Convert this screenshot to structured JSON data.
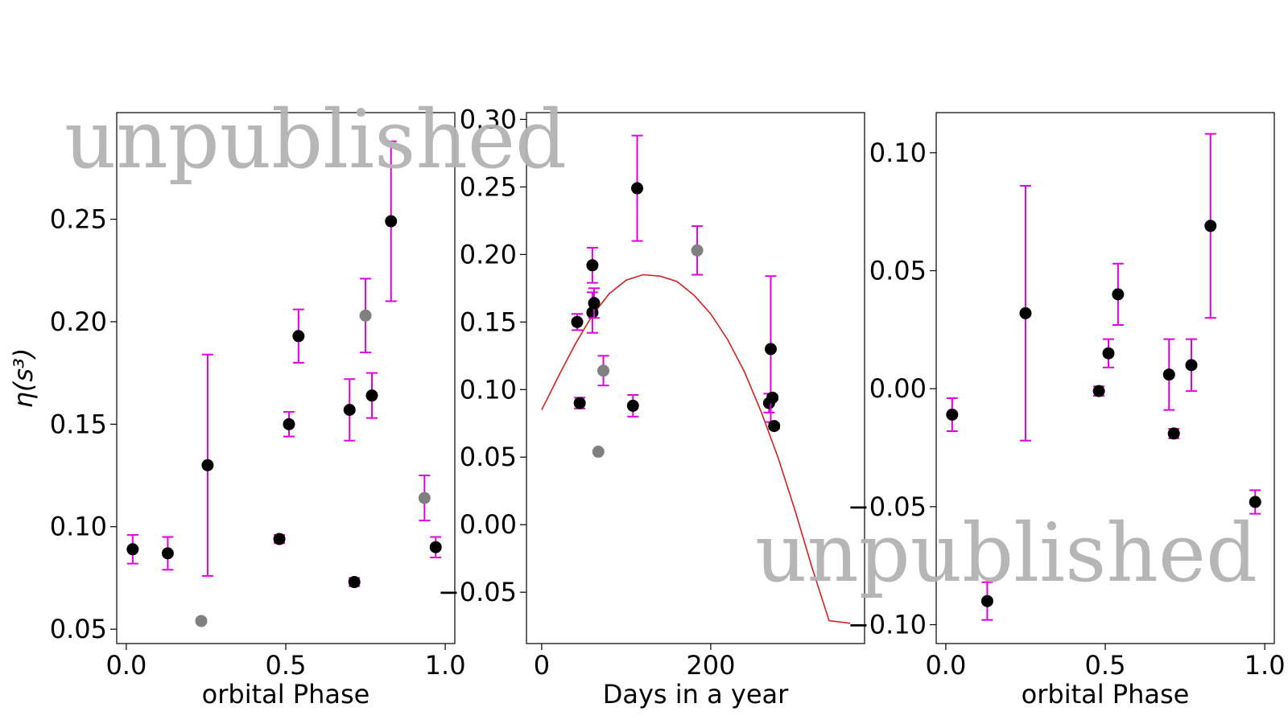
{
  "colors": {
    "black_points": "#000000",
    "excluded_points": "#808080",
    "errorbars": "#e000e0",
    "fit_curve": "#d42020",
    "watermark": "#b3b3b3"
  },
  "watermark_text": "unpublished",
  "chart_data": [
    {
      "type": "scatter",
      "xlabel": "orbital Phase",
      "ylabel": "η(s³)",
      "xlim": [
        -0.03,
        1.03
      ],
      "ylim": [
        0.043,
        0.302
      ],
      "xticks": [
        0.0,
        0.5,
        1.0
      ],
      "xtick_labels": [
        "0.0",
        "0.5",
        "1.0"
      ],
      "yticks": [
        0.05,
        0.1,
        0.15,
        0.2,
        0.25
      ],
      "ytick_labels": [
        "0.05",
        "0.10",
        "0.15",
        "0.20",
        "0.25"
      ],
      "grid": false,
      "points": [
        {
          "x": 0.02,
          "y": 0.089,
          "err": 0.007,
          "excluded": false
        },
        {
          "x": 0.13,
          "y": 0.087,
          "err": 0.008,
          "excluded": false
        },
        {
          "x": 0.235,
          "y": 0.054,
          "err": 0,
          "excluded": true
        },
        {
          "x": 0.255,
          "y": 0.13,
          "err": 0.054,
          "excluded": false
        },
        {
          "x": 0.48,
          "y": 0.094,
          "err": 0.002,
          "excluded": false
        },
        {
          "x": 0.51,
          "y": 0.15,
          "err": 0.006,
          "excluded": false
        },
        {
          "x": 0.54,
          "y": 0.193,
          "err": 0.013,
          "excluded": false
        },
        {
          "x": 0.7,
          "y": 0.157,
          "err": 0.015,
          "excluded": false
        },
        {
          "x": 0.715,
          "y": 0.073,
          "err": 0.002,
          "excluded": false
        },
        {
          "x": 0.75,
          "y": 0.203,
          "err": 0.018,
          "excluded": true
        },
        {
          "x": 0.77,
          "y": 0.164,
          "err": 0.011,
          "excluded": false
        },
        {
          "x": 0.83,
          "y": 0.249,
          "err": 0.039,
          "excluded": false
        },
        {
          "x": 0.935,
          "y": 0.114,
          "err": 0.011,
          "excluded": true
        },
        {
          "x": 0.97,
          "y": 0.09,
          "err": 0.005,
          "excluded": false
        }
      ]
    },
    {
      "type": "scatter",
      "xlabel": "Days in a year",
      "ylabel": "",
      "xlim": [
        -18,
        382
      ],
      "ylim": [
        -0.088,
        0.305
      ],
      "xticks": [
        0,
        200
      ],
      "xtick_labels": [
        "0",
        "200"
      ],
      "yticks": [
        -0.05,
        0.0,
        0.05,
        0.1,
        0.15,
        0.2,
        0.25,
        0.3
      ],
      "ytick_labels": [
        "−0.05",
        "0.00",
        "0.05",
        "0.10",
        "0.15",
        "0.20",
        "0.25",
        "0.30"
      ],
      "grid": false,
      "points": [
        {
          "x": 42,
          "y": 0.15,
          "err": 0.006,
          "excluded": false
        },
        {
          "x": 45,
          "y": 0.09,
          "err": 0.004,
          "excluded": false
        },
        {
          "x": 60,
          "y": 0.157,
          "err": 0.015,
          "excluded": false
        },
        {
          "x": 60,
          "y": 0.192,
          "err": 0.013,
          "excluded": false
        },
        {
          "x": 62,
          "y": 0.164,
          "err": 0.011,
          "excluded": false
        },
        {
          "x": 67,
          "y": 0.054,
          "err": 0,
          "excluded": true
        },
        {
          "x": 73,
          "y": 0.114,
          "err": 0.011,
          "excluded": true
        },
        {
          "x": 108,
          "y": 0.088,
          "err": 0.008,
          "excluded": false
        },
        {
          "x": 113,
          "y": 0.249,
          "err": 0.039,
          "excluded": false
        },
        {
          "x": 184,
          "y": 0.203,
          "err": 0.018,
          "excluded": true
        },
        {
          "x": 269,
          "y": 0.09,
          "err": 0.007,
          "excluded": false
        },
        {
          "x": 271,
          "y": 0.13,
          "err": 0.054,
          "excluded": false
        },
        {
          "x": 273,
          "y": 0.094,
          "err": 0.002,
          "excluded": false
        },
        {
          "x": 275,
          "y": 0.073,
          "err": 0.002,
          "excluded": false
        }
      ],
      "fit_curve": {
        "x": [
          0,
          20,
          40,
          60,
          80,
          100,
          120,
          140,
          160,
          180,
          200,
          220,
          240,
          260,
          280,
          300,
          320,
          340,
          365
        ],
        "y": [
          0.085,
          0.11,
          0.134,
          0.155,
          0.171,
          0.181,
          0.185,
          0.184,
          0.18,
          0.17,
          0.156,
          0.137,
          0.113,
          0.083,
          0.049,
          0.01,
          -0.032,
          -0.071,
          -0.073
        ]
      }
    },
    {
      "type": "scatter",
      "xlabel": "orbital Phase",
      "ylabel": "",
      "xlim": [
        -0.03,
        1.03
      ],
      "ylim": [
        -0.108,
        0.117
      ],
      "xticks": [
        0.0,
        0.5,
        1.0
      ],
      "xtick_labels": [
        "0.0",
        "0.5",
        "1.0"
      ],
      "yticks": [
        -0.1,
        -0.05,
        0.0,
        0.05,
        0.1
      ],
      "ytick_labels": [
        "−0.10",
        "−0.05",
        "0.00",
        "0.05",
        "0.10"
      ],
      "grid": false,
      "points": [
        {
          "x": 0.02,
          "y": -0.011,
          "err": 0.007,
          "excluded": false
        },
        {
          "x": 0.13,
          "y": -0.09,
          "err": 0.008,
          "excluded": false
        },
        {
          "x": 0.25,
          "y": 0.032,
          "err": 0.054,
          "excluded": false
        },
        {
          "x": 0.48,
          "y": -0.001,
          "err": 0.002,
          "excluded": false
        },
        {
          "x": 0.51,
          "y": 0.015,
          "err": 0.006,
          "excluded": false
        },
        {
          "x": 0.54,
          "y": 0.04,
          "err": 0.013,
          "excluded": false
        },
        {
          "x": 0.7,
          "y": 0.006,
          "err": 0.015,
          "excluded": false
        },
        {
          "x": 0.715,
          "y": -0.019,
          "err": 0.002,
          "excluded": false
        },
        {
          "x": 0.77,
          "y": 0.01,
          "err": 0.011,
          "excluded": false
        },
        {
          "x": 0.83,
          "y": 0.069,
          "err": 0.039,
          "excluded": false
        },
        {
          "x": 0.97,
          "y": -0.048,
          "err": 0.005,
          "excluded": false
        }
      ]
    }
  ]
}
